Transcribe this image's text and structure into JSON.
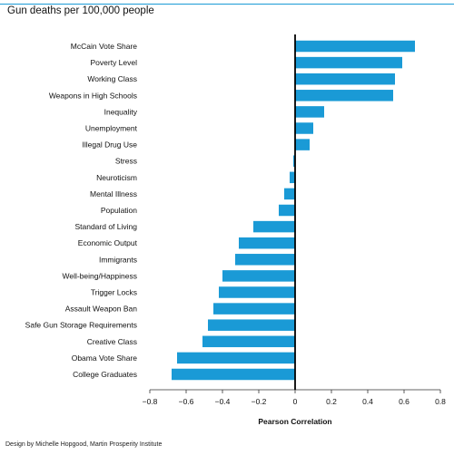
{
  "title": "Gun deaths per 100,000 people",
  "credit": "Design by Michelle Hopgood, Martin Prosperity Institute",
  "chart_data": {
    "type": "bar",
    "orientation": "horizontal",
    "title": "Gun deaths per 100,000 people",
    "xlabel": "Pearson Correlation",
    "ylabel": "",
    "xlim": [
      -0.8,
      0.8
    ],
    "xticks": [
      -0.8,
      -0.6,
      -0.4,
      -0.2,
      0,
      0.2,
      0.4,
      0.6,
      0.8
    ],
    "tick_labels": [
      "−0.8",
      "−0.6",
      "−0.4",
      "−0.2",
      "0",
      "0.2",
      "0.4",
      "0.6",
      "0.8"
    ],
    "grid": false,
    "categories": [
      "McCain Vote Share",
      "Poverty Level",
      "Working Class",
      "Weapons in High Schools",
      "Inequality",
      "Unemployment",
      "Illegal Drug Use",
      "Stress",
      "Neuroticism",
      "Mental Illness",
      "Population",
      "Standard of Living",
      "Economic Output",
      "Immigrants",
      "Well-being/Happiness",
      "Trigger Locks",
      "Assault Weapon Ban",
      "Safe Gun Storage Requirements",
      "Creative Class",
      "Obama Vote Share",
      "College Graduates"
    ],
    "values": [
      0.66,
      0.59,
      0.55,
      0.54,
      0.16,
      0.1,
      0.08,
      -0.01,
      -0.03,
      -0.06,
      -0.09,
      -0.23,
      -0.31,
      -0.33,
      -0.4,
      -0.42,
      -0.45,
      -0.48,
      -0.51,
      -0.65,
      -0.68
    ],
    "bar_color": "#1a9ad6",
    "zero_line_color": "#000000"
  }
}
